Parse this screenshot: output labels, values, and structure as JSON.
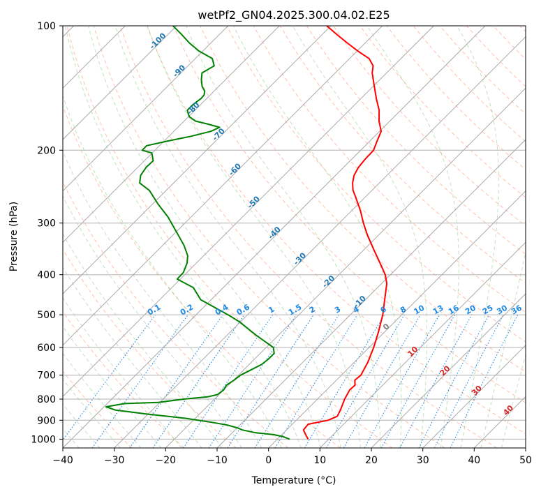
{
  "chart_data": {
    "type": "line",
    "title": "wetPf2_GN04.2025.300.04.02.E25",
    "xlabel": "Temperature (°C)",
    "ylabel": "Pressure (hPa)",
    "xlim": [
      -40,
      50
    ],
    "ylim": [
      1050,
      100
    ],
    "y_scale": "log",
    "x_ticks": [
      -40,
      -30,
      -20,
      -10,
      0,
      10,
      20,
      30,
      40,
      50
    ],
    "x_tick_labels": [
      "−40",
      "−30",
      "−20",
      "−10",
      "0",
      "10",
      "20",
      "30",
      "40",
      "50"
    ],
    "y_ticks": [
      100,
      200,
      300,
      400,
      500,
      600,
      700,
      800,
      900,
      1000
    ],
    "y_tick_labels": [
      "100",
      "200",
      "300",
      "400",
      "500",
      "600",
      "700",
      "800",
      "900",
      "1000"
    ],
    "grid": true,
    "series": [
      {
        "color": "#ff0000",
        "pressure": [
          1000,
          980,
          950,
          920,
          900,
          880,
          850,
          800,
          760,
          740,
          720,
          700,
          650,
          600,
          550,
          500,
          450,
          420,
          400,
          380,
          350,
          320,
          300,
          280,
          260,
          250,
          240,
          230,
          220,
          210,
          200,
          190,
          180,
          170,
          160,
          150,
          140,
          130,
          125,
          120,
          115,
          110,
          105,
          100
        ],
        "temperature": [
          6.0,
          4.9,
          3.3,
          3.1,
          6.2,
          7.2,
          6.6,
          5.3,
          4.5,
          4.6,
          3.6,
          3.8,
          2.6,
          0.9,
          -1.2,
          -3.7,
          -6.9,
          -9.0,
          -11.0,
          -13.6,
          -17.8,
          -22.3,
          -25.3,
          -28.3,
          -31.8,
          -33.7,
          -35.2,
          -36.4,
          -37.1,
          -37.4,
          -37.5,
          -38.6,
          -39.7,
          -42.1,
          -44.2,
          -47.0,
          -49.8,
          -52.8,
          -54.0,
          -56.2,
          -59.9,
          -63.5,
          -67.1,
          -70.8
        ]
      },
      {
        "color": "#008000",
        "pressure": [
          1000,
          985,
          975,
          965,
          950,
          940,
          925,
          910,
          890,
          870,
          850,
          835,
          820,
          815,
          800,
          790,
          780,
          760,
          740,
          720,
          700,
          680,
          660,
          640,
          620,
          600,
          560,
          520,
          500,
          460,
          430,
          410,
          395,
          375,
          360,
          340,
          320,
          290,
          270,
          250,
          240,
          230,
          220,
          212,
          206,
          203,
          200,
          195,
          190,
          185,
          180,
          176,
          173,
          170,
          166,
          163,
          160,
          155,
          150,
          147,
          144,
          140,
          135,
          130,
          125,
          120,
          115,
          110,
          105,
          100
        ],
        "temperature": [
          2.4,
          0.5,
          -1.6,
          -5.4,
          -8.6,
          -9.8,
          -12.3,
          -16.1,
          -21.9,
          -30.0,
          -37.2,
          -39.6,
          -36.6,
          -30.3,
          -26.0,
          -21.8,
          -20.3,
          -20.0,
          -20.4,
          -19.9,
          -19.6,
          -18.6,
          -17.6,
          -17.3,
          -17.3,
          -18.6,
          -24.4,
          -30.2,
          -33.8,
          -42.0,
          -45.8,
          -50.6,
          -50.7,
          -51.8,
          -53.1,
          -55.8,
          -59.1,
          -64.5,
          -68.9,
          -73.3,
          -76.6,
          -77.9,
          -78.4,
          -78.3,
          -79.5,
          -80.1,
          -82.5,
          -82.5,
          -79.3,
          -75.7,
          -72.8,
          -71.9,
          -74.7,
          -77.8,
          -79.8,
          -80.7,
          -81.5,
          -81.5,
          -81.1,
          -81.2,
          -81.8,
          -83.3,
          -84.7,
          -85.9,
          -84.9,
          -86.7,
          -90.8,
          -94.2,
          -97.3,
          -100.7
        ]
      }
    ],
    "annotations": {
      "mixing_ratio_labels": [
        "0.1",
        "0.2",
        "0.4",
        "0.6",
        "1",
        "1.5",
        "2",
        "3",
        "4",
        "6",
        "8",
        "10",
        "13",
        "16",
        "20",
        "25",
        "30",
        "36"
      ],
      "isotherm_labels": [
        "-100",
        "-90",
        "-80",
        "-70",
        "-60",
        "-50",
        "-40",
        "-30",
        "-20",
        "-10",
        "0",
        "10",
        "20",
        "30",
        "40"
      ]
    }
  }
}
